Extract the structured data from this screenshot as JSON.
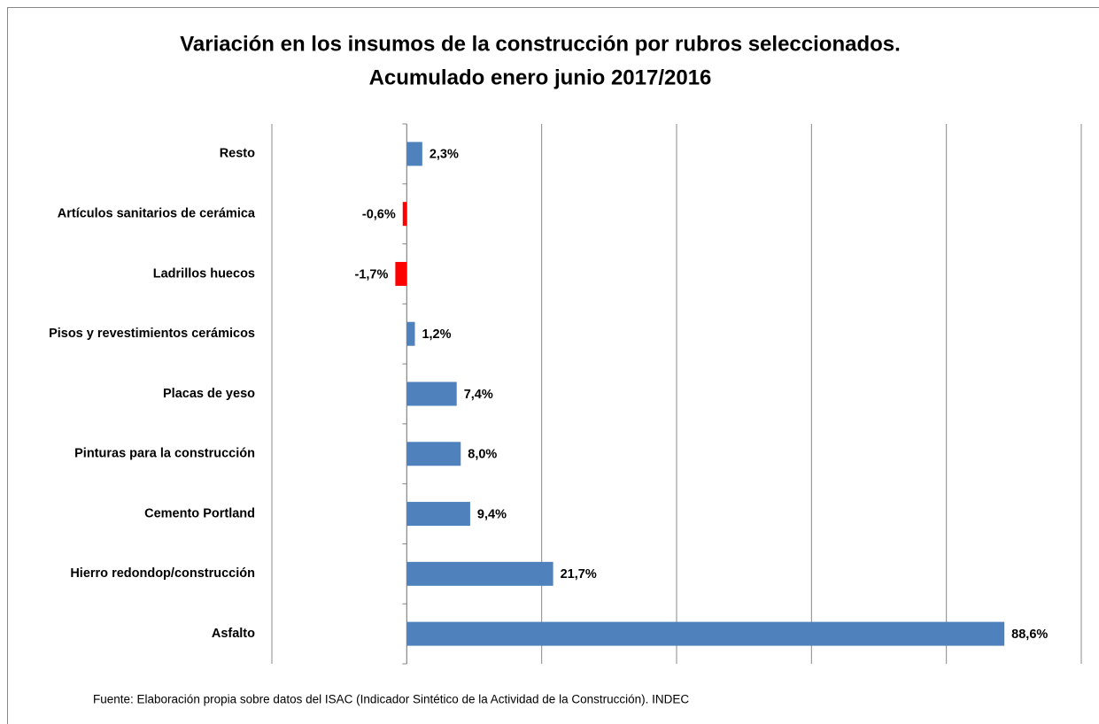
{
  "chart_data": {
    "type": "barh",
    "title": "Variación en los insumos de la construcción por rubros seleccionados.",
    "subtitle": "Acumulado enero junio  2017/2016",
    "categories": [
      "Resto",
      "Artículos sanitarios de cerámica",
      "Ladrillos huecos",
      "Pisos y revestimientos cerámicos",
      "Placas de yeso",
      "Pinturas para la construcción",
      "Cemento Portland",
      "Hierro redondop/construcción",
      "Asfalto"
    ],
    "values": [
      2.3,
      -0.6,
      -1.7,
      1.2,
      7.4,
      8.0,
      9.4,
      21.7,
      88.6
    ],
    "value_labels": [
      "2,3%",
      "-0,6%",
      "-1,7%",
      "1,2%",
      "7,4%",
      "8,0%",
      "9,4%",
      "21,7%",
      "88,6%"
    ],
    "color": "#4f81bd",
    "negative_color": "#ff0000",
    "xlim": [
      -20,
      100
    ],
    "xticks": [
      -20,
      0,
      20,
      40,
      60,
      80,
      100
    ],
    "grid": true,
    "source": "Fuente: Elaboración propia sobre datos del ISAC (Indicador Sintético de la Actividad de la Construcción). INDEC"
  }
}
